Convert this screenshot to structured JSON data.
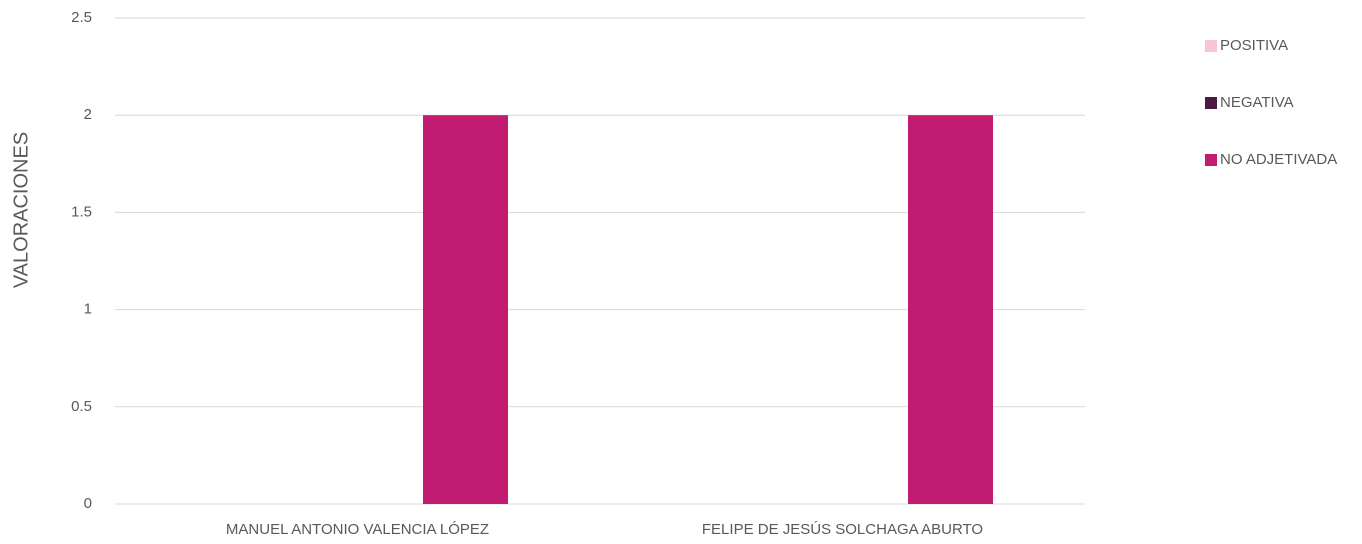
{
  "chart_data": {
    "type": "bar",
    "y_label": "VALORACIONES",
    "categories": [
      "MANUEL ANTONIO VALENCIA LÓPEZ",
      "FELIPE DE JESÚS SOLCHAGA ABURTO"
    ],
    "series": [
      {
        "name": "POSITIVA",
        "color": "#f8c5d8",
        "values": [
          0,
          0
        ]
      },
      {
        "name": "NEGATIVA",
        "color": "#4b1a43",
        "values": [
          0,
          0
        ]
      },
      {
        "name": "NO ADJETIVADA",
        "color": "#c21b72",
        "values": [
          2,
          2
        ]
      }
    ],
    "ylim": [
      0,
      2.5
    ],
    "yticks": [
      0,
      0.5,
      1,
      1.5,
      2,
      2.5
    ],
    "grid": true,
    "legend": "right"
  }
}
